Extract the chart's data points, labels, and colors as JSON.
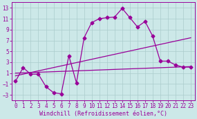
{
  "background_color": "#cce8e8",
  "grid_color": "#aacccc",
  "line_color": "#990099",
  "marker_style": "D",
  "marker_size": 2.5,
  "line_width": 0.9,
  "xlabel": "Windchill (Refroidissement éolien,°C)",
  "xlabel_fontsize": 6,
  "tick_fontsize": 5.5,
  "xlim": [
    -0.5,
    23.5
  ],
  "ylim": [
    -4,
    14
  ],
  "yticks": [
    -3,
    -1,
    1,
    3,
    5,
    7,
    9,
    11,
    13
  ],
  "xticks": [
    0,
    1,
    2,
    3,
    4,
    5,
    6,
    7,
    8,
    9,
    10,
    11,
    12,
    13,
    14,
    15,
    16,
    17,
    18,
    19,
    20,
    21,
    22,
    23
  ],
  "series1_x": [
    0,
    1,
    2,
    3,
    4,
    5,
    6,
    7,
    8,
    9,
    10,
    11,
    12,
    13,
    14,
    15,
    16,
    17,
    18,
    19,
    20,
    21,
    22,
    23
  ],
  "series1_y": [
    -0.5,
    2.0,
    0.8,
    0.8,
    -1.5,
    -2.6,
    -2.8,
    4.2,
    -0.8,
    7.5,
    10.3,
    11.0,
    11.2,
    11.3,
    12.9,
    11.2,
    9.5,
    10.5,
    7.8,
    3.2,
    3.2,
    2.5,
    2.1,
    2.1
  ],
  "series2_x": [
    0,
    23
  ],
  "series2_y": [
    1.0,
    2.2
  ],
  "series3_x": [
    0,
    23
  ],
  "series3_y": [
    0.5,
    7.5
  ]
}
